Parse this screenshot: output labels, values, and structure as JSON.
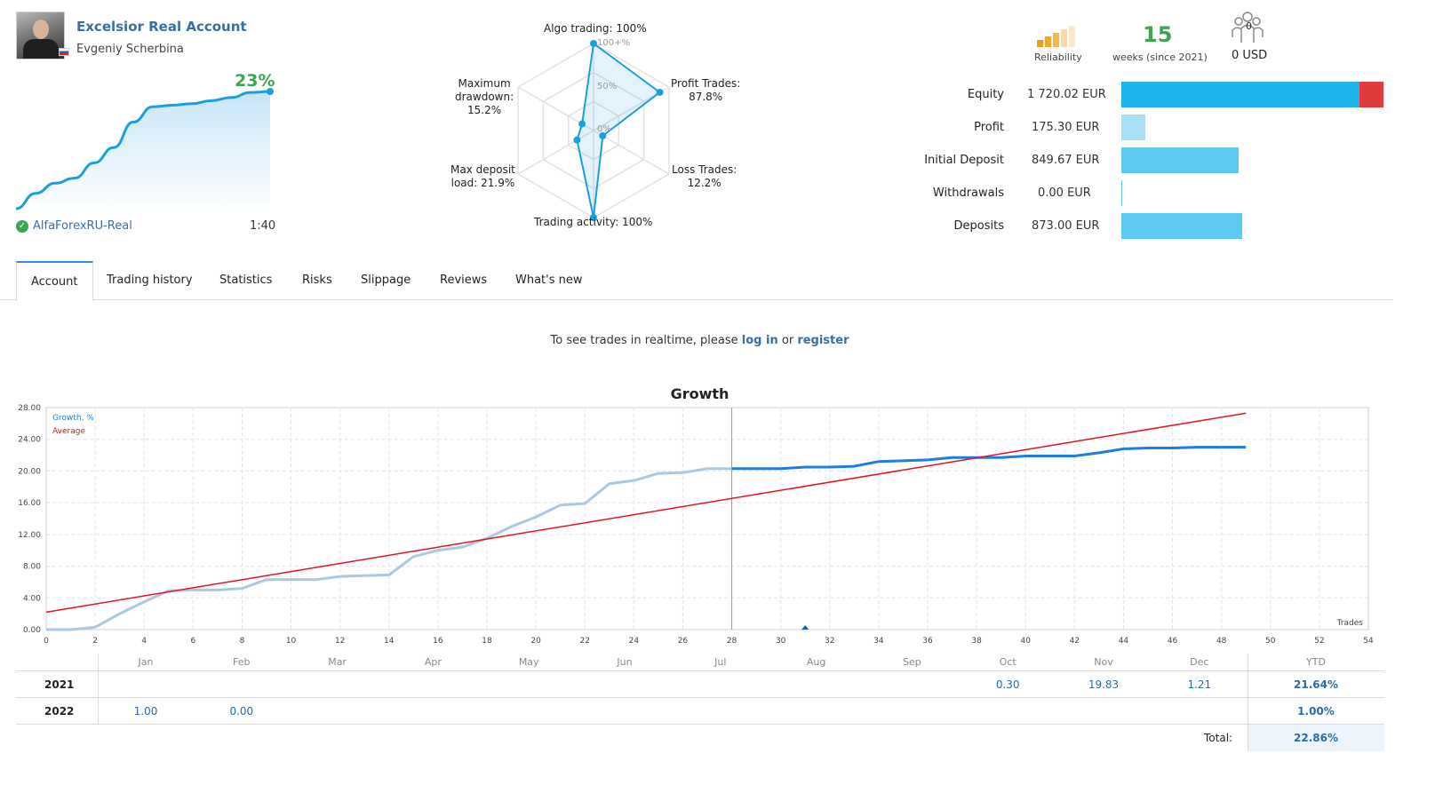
{
  "account": {
    "title": "Excelsior Real Account",
    "owner": "Evgeniy Scherbina",
    "growth": "23%",
    "server": "AlfaForexRU-Real",
    "leverage": "1:40",
    "sparkline": [
      0,
      3,
      5,
      6,
      9,
      12,
      17,
      20,
      20.3,
      20.6,
      21.2,
      21.8,
      22.8,
      23
    ]
  },
  "radar": {
    "labels": {
      "algo": "Algo trading: 100%",
      "profit_line1": "Profit Trades:",
      "profit_line2": "87.8%",
      "loss_line1": "Loss Trades:",
      "loss_line2": "12.2%",
      "activity": "Trading activity: 100%",
      "depload_line1": "Max deposit",
      "depload_line2": "load: 21.9%",
      "dd_line1": "Maximum",
      "dd_line2": "drawdown:",
      "dd_line3": "15.2%"
    },
    "scale": [
      "100+%",
      "50%",
      "0%"
    ],
    "values": {
      "algo": 100,
      "profit": 87.8,
      "loss": 12.2,
      "activity": 100,
      "depload": 21.9,
      "drawdown": 15.2
    }
  },
  "stats": {
    "reliability_label": "Reliability",
    "weeks": "15",
    "weeks_label": "weeks (since 2021)",
    "subscribers": "0",
    "subscription_price": "0 USD"
  },
  "finance": [
    {
      "label": "Equity",
      "value": "1 720.02 EUR",
      "amount": 1720.02
    },
    {
      "label": "Profit",
      "value": "175.30 EUR",
      "amount": 175.3
    },
    {
      "label": "Initial Deposit",
      "value": "849.67 EUR",
      "amount": 849.67
    },
    {
      "label": "Withdrawals",
      "value": "0.00 EUR",
      "amount": 0
    },
    {
      "label": "Deposits",
      "value": "873.00 EUR",
      "amount": 873.0
    }
  ],
  "colors": {
    "accent": "#1a9fdd",
    "green": "#3aa655",
    "link": "#3a6fa6",
    "average": "#e8141b",
    "growth_dark": "#1a7fe0",
    "growth_light": "#aac8e2"
  },
  "tabs": [
    "Account",
    "Trading history",
    "Statistics",
    "Risks",
    "Slippage",
    "Reviews",
    "What's new"
  ],
  "realtime": {
    "prefix": "To see trades in realtime, please ",
    "login": "log in",
    "middle": " or ",
    "register": "register"
  },
  "chart_data": {
    "type": "line",
    "title": "Growth",
    "xlabel": "Trades",
    "ylabel": "",
    "xlim": [
      0,
      54
    ],
    "ylim": [
      0,
      28
    ],
    "xticks": [
      0,
      2,
      4,
      6,
      8,
      10,
      12,
      14,
      16,
      18,
      20,
      22,
      24,
      26,
      28,
      30,
      32,
      34,
      36,
      38,
      40,
      42,
      44,
      46,
      48,
      50,
      52,
      54
    ],
    "yticks": [
      "0.00",
      "4.00",
      "8.00",
      "12.00",
      "16.00",
      "20.00",
      "24.00",
      "28.00"
    ],
    "grid": true,
    "legend_position": "top-left",
    "series": [
      {
        "name": "Growth, %",
        "x": [
          0,
          1,
          2,
          3,
          4,
          5,
          6,
          7,
          8,
          9,
          10,
          11,
          12,
          13,
          14,
          15,
          16,
          17,
          18,
          19,
          20,
          21,
          22,
          23,
          24,
          25,
          26,
          27,
          28,
          29,
          30,
          31,
          32,
          33,
          34,
          35,
          36,
          37,
          38,
          39,
          40,
          41,
          42,
          43,
          44,
          45,
          46,
          47,
          48,
          49
        ],
        "y": [
          0,
          0,
          0.3,
          2,
          3.5,
          4.9,
          5,
          5,
          5.2,
          6.3,
          6.3,
          6.3,
          6.7,
          6.8,
          6.9,
          9.2,
          10,
          10.4,
          11.5,
          13,
          14.2,
          15.7,
          15.9,
          18.4,
          18.8,
          19.7,
          19.8,
          20.3,
          20.3,
          20.3,
          20.3,
          20.5,
          20.5,
          20.6,
          21.2,
          21.3,
          21.4,
          21.7,
          21.7,
          21.7,
          21.9,
          21.9,
          21.9,
          22.3,
          22.8,
          22.9,
          22.9,
          23,
          23,
          23
        ]
      },
      {
        "name": "Average",
        "x": [
          0,
          49
        ],
        "y": [
          2.2,
          27.3
        ]
      }
    ],
    "history_split_x": 28,
    "marker_x": 31
  },
  "monthly": {
    "months": [
      "Jan",
      "Feb",
      "Mar",
      "Apr",
      "May",
      "Jun",
      "Jul",
      "Aug",
      "Sep",
      "Oct",
      "Nov",
      "Dec"
    ],
    "ytd_header": "YTD",
    "rows": [
      {
        "year": "2021",
        "values": [
          "",
          "",
          "",
          "",
          "",
          "",
          "",
          "",
          "",
          "0.30",
          "19.83",
          "1.21"
        ],
        "ytd": "21.64%"
      },
      {
        "year": "2022",
        "values": [
          "1.00",
          "0.00",
          "",
          "",
          "",
          "",
          "",
          "",
          "",
          "",
          "",
          ""
        ],
        "ytd": "1.00%"
      }
    ],
    "total_label": "Total:",
    "total": "22.86%"
  }
}
